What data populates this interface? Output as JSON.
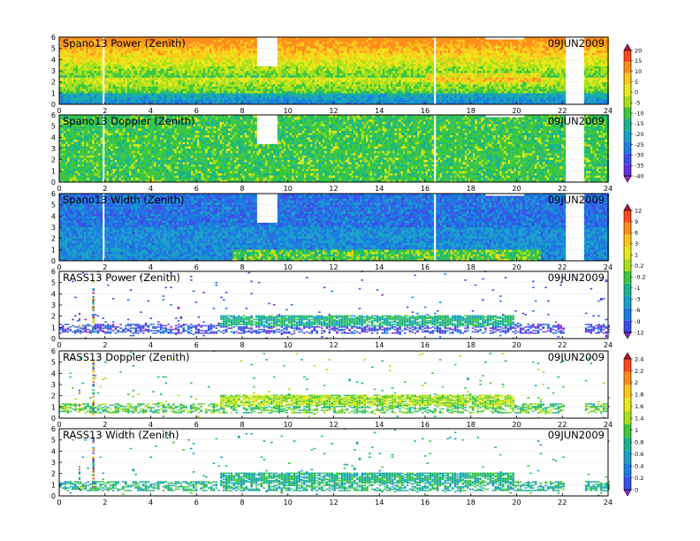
{
  "chart_data": [
    {
      "type": "heatmap",
      "title": "Spano13 Power (Zenith)",
      "date": "09JUN2009",
      "ylim": [
        0,
        6
      ],
      "xlim": [
        0,
        24
      ],
      "yticks": [
        "0",
        "1",
        "2",
        "3",
        "4",
        "5",
        "6"
      ],
      "xticks": [
        "0",
        "2",
        "4",
        "6",
        "8",
        "10",
        "12",
        "14",
        "16",
        "18",
        "20",
        "22",
        "24"
      ],
      "kind": "spano",
      "variant": "power",
      "gaps": [
        [
          8.6,
          9.5,
          3.4
        ],
        [
          22.1,
          22.9,
          0
        ]
      ],
      "colorbar": "a"
    },
    {
      "type": "heatmap",
      "title": "Spano13 Doppler (Zenith)",
      "date": "09JUN2009",
      "ylim": [
        0,
        6
      ],
      "xlim": [
        0,
        24
      ],
      "yticks": [
        "0",
        "1",
        "2",
        "3",
        "4",
        "5",
        "6"
      ],
      "xticks": [
        "0",
        "2",
        "4",
        "6",
        "8",
        "10",
        "12",
        "14",
        "16",
        "18",
        "20",
        "22",
        "24"
      ],
      "kind": "spano",
      "variant": "doppler",
      "gaps": [
        [
          8.6,
          9.5,
          3.4
        ],
        [
          22.1,
          22.9,
          0
        ]
      ],
      "colorbar": "a"
    },
    {
      "type": "heatmap",
      "title": "Spano13 Width (Zenith)",
      "date": "09JUN2009",
      "ylim": [
        0,
        6
      ],
      "xlim": [
        0,
        24
      ],
      "yticks": [
        "0",
        "1",
        "2",
        "3",
        "4",
        "5",
        "6"
      ],
      "xticks": [
        "0",
        "2",
        "4",
        "6",
        "8",
        "10",
        "12",
        "14",
        "16",
        "18",
        "20",
        "22",
        "24"
      ],
      "kind": "spano",
      "variant": "width",
      "gaps": [
        [
          8.6,
          9.5,
          3.4
        ],
        [
          22.1,
          22.9,
          0
        ]
      ],
      "colorbar": "b"
    },
    {
      "type": "heatmap",
      "title": "RASS13 Power (Zenith)",
      "date": "09JUN2009",
      "ylim": [
        0,
        6
      ],
      "xlim": [
        0,
        24
      ],
      "yticks": [
        "0",
        "1",
        "2",
        "3",
        "4",
        "5",
        "6"
      ],
      "xticks": [
        "0",
        "2",
        "4",
        "6",
        "8",
        "10",
        "12",
        "14",
        "16",
        "18",
        "20",
        "22",
        "24"
      ],
      "kind": "rass",
      "variant": "power",
      "gaps": [
        [
          22.1,
          22.9,
          0
        ]
      ],
      "colorbar": "b"
    },
    {
      "type": "heatmap",
      "title": "RASS13 Doppler (Zenith)",
      "date": "09JUN2009",
      "ylim": [
        0,
        6
      ],
      "xlim": [
        0,
        24
      ],
      "yticks": [
        "0",
        "1",
        "2",
        "3",
        "4",
        "5",
        "6"
      ],
      "xticks": [
        "0",
        "2",
        "4",
        "6",
        "8",
        "10",
        "12",
        "14",
        "16",
        "18",
        "20",
        "22",
        "24"
      ],
      "kind": "rass",
      "variant": "doppler",
      "gaps": [
        [
          22.1,
          22.9,
          0
        ]
      ],
      "colorbar": "c"
    },
    {
      "type": "heatmap",
      "title": "RASS13 Width (Zenith)",
      "date": "09JUN2009",
      "ylim": [
        0,
        6
      ],
      "xlim": [
        0,
        24
      ],
      "yticks": [
        "0",
        "1",
        "2",
        "3",
        "4",
        "5",
        "6"
      ],
      "xticks": [
        "0",
        "2",
        "4",
        "6",
        "8",
        "10",
        "12",
        "14",
        "16",
        "18",
        "20",
        "22",
        "24"
      ],
      "kind": "rass",
      "variant": "width",
      "gaps": [
        [
          22.1,
          22.9,
          0
        ]
      ],
      "colorbar": "c"
    }
  ],
  "colorbars": {
    "a": {
      "labels": [
        "20",
        "15",
        "10",
        "5",
        "0",
        "-5",
        "-10",
        "-15",
        "-20",
        "-25",
        "-30",
        "-35",
        "-40"
      ],
      "colors": [
        "#c8102e",
        "#ff4a1c",
        "#ff8c1a",
        "#ffc61a",
        "#e8e81a",
        "#a8e01a",
        "#3cc83c",
        "#1ab48c",
        "#1aa0c8",
        "#1a7ce0",
        "#3c50e8",
        "#6432e0",
        "#9a2ad8"
      ]
    },
    "b": {
      "labels": [
        "12",
        "9",
        "6",
        "3",
        "1",
        "0.2",
        "-0.2",
        "-1",
        "-3",
        "-6",
        "-9",
        "-12"
      ],
      "colors": [
        "#c8102e",
        "#ff4a1c",
        "#ff8c1a",
        "#ffc61a",
        "#e8e81a",
        "#a8e01a",
        "#3cc83c",
        "#1ab48c",
        "#1aa0c8",
        "#1a7ce0",
        "#3c50e8",
        "#8a2ad8"
      ]
    },
    "c": {
      "labels": [
        "2.4",
        "2.2",
        "2",
        "1.8",
        "1.6",
        "1.4",
        "1",
        "0.8",
        "0.6",
        "0.4",
        "0.2",
        "0"
      ],
      "colors": [
        "#c8102e",
        "#ff4a1c",
        "#ff8c1a",
        "#ffc61a",
        "#e8e81a",
        "#a8e01a",
        "#3cc83c",
        "#1ab48c",
        "#1aa0c8",
        "#1a7ce0",
        "#3c50e8",
        "#8a2ad8"
      ]
    }
  }
}
